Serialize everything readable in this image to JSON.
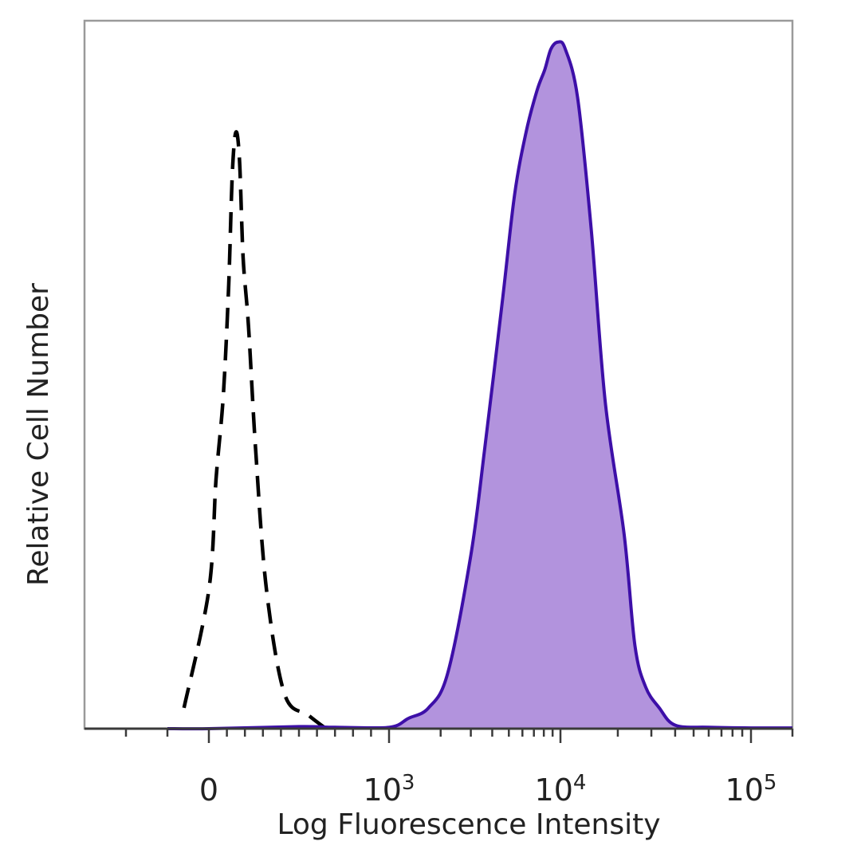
{
  "chart_data": {
    "type": "area",
    "xlabel": "Log Fluorescence Intensity",
    "ylabel": "Relative Cell Number",
    "x_scale": "biexponential",
    "xlim": [
      -300,
      200000
    ],
    "ylim": [
      0,
      100
    ],
    "x_ticks": [
      {
        "value": 0,
        "base": "0",
        "exp": ""
      },
      {
        "value": 1000,
        "base": "10",
        "exp": "3"
      },
      {
        "value": 10000,
        "base": "10",
        "exp": "4"
      },
      {
        "value": 100000,
        "base": "10",
        "exp": "5"
      }
    ],
    "series": [
      {
        "style": "dashed-outline",
        "color": "#000000",
        "x": [
          -60,
          0,
          40,
          80,
          110,
          130,
          150,
          170,
          190,
          220,
          260,
          320,
          420,
          550,
          650
        ],
        "y": [
          3,
          20,
          36,
          48,
          64,
          80,
          86,
          82,
          68,
          58,
          40,
          20,
          5,
          2,
          0
        ]
      },
      {
        "style": "filled",
        "color": "#3d0fa8",
        "fill": "#b293dd",
        "x": [
          -100,
          0,
          500,
          700,
          1000,
          1300,
          1700,
          2200,
          3000,
          3600,
          4600,
          5400,
          6300,
          7300,
          8100,
          8800,
          9700,
          10600,
          12300,
          14500,
          17200,
          21600,
          24600,
          28000,
          33000,
          40000,
          60000,
          100000,
          200000
        ],
        "y": [
          0,
          0,
          0.3,
          0.2,
          0.2,
          1.5,
          3,
          8,
          25,
          40,
          62,
          77,
          86,
          92,
          95,
          98,
          99,
          98,
          91,
          72,
          47,
          28,
          12,
          6,
          3,
          0.5,
          0.2,
          0.1,
          0.1
        ]
      }
    ]
  }
}
